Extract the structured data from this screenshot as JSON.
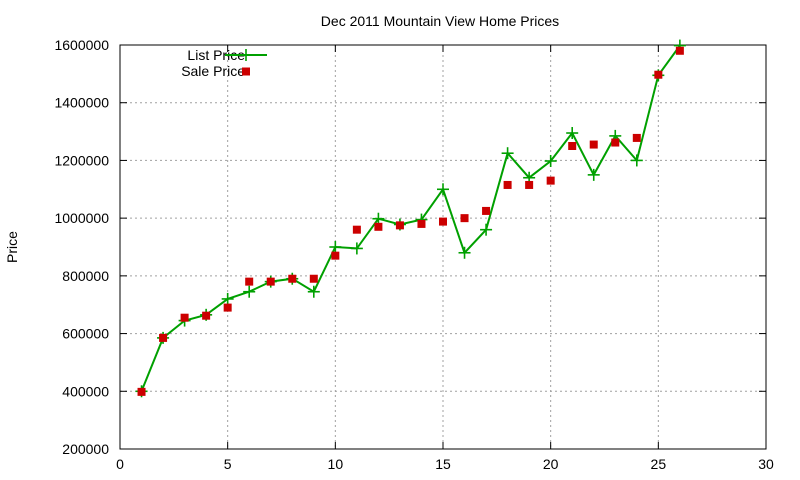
{
  "chart_data": {
    "type": "line",
    "title": "Dec 2011 Mountain View Home Prices",
    "xlabel": "",
    "ylabel": "Price",
    "xlim": [
      0,
      30
    ],
    "ylim": [
      200000,
      1600000
    ],
    "xticks": [
      "0",
      "5",
      "10",
      "15",
      "20",
      "25",
      "30"
    ],
    "yticks": [
      "200000",
      "400000",
      "600000",
      "800000",
      "1000000",
      "1200000",
      "1400000",
      "1600000"
    ],
    "grid": true,
    "legend_position": "top-left",
    "series": [
      {
        "name": "List Price",
        "style": "line+plus",
        "color": "#00a000",
        "x": [
          1,
          2,
          3,
          4,
          5,
          6,
          7,
          8,
          9,
          10,
          11,
          12,
          13,
          14,
          15,
          16,
          17,
          18,
          19,
          20,
          21,
          22,
          23,
          24,
          25,
          26
        ],
        "y": [
          400000,
          585000,
          645000,
          665000,
          720000,
          745000,
          780000,
          790000,
          745000,
          900000,
          895000,
          998000,
          978000,
          995000,
          1100000,
          880000,
          960000,
          1225000,
          1140000,
          1198000,
          1295000,
          1150000,
          1285000,
          1200000,
          1495000,
          1598000
        ]
      },
      {
        "name": "Sale Price",
        "style": "square",
        "color": "#cc0000",
        "x": [
          1,
          2,
          3,
          4,
          5,
          6,
          7,
          8,
          9,
          10,
          11,
          12,
          13,
          14,
          15,
          16,
          17,
          18,
          19,
          20,
          21,
          22,
          23,
          24,
          25,
          26
        ],
        "y": [
          398000,
          585000,
          655000,
          662000,
          690000,
          780000,
          780000,
          790000,
          790000,
          870000,
          960000,
          970000,
          975000,
          980000,
          988000,
          1000000,
          1025000,
          1115000,
          1115000,
          1130000,
          1250000,
          1255000,
          1262000,
          1278000,
          1497000,
          1580000
        ]
      }
    ]
  }
}
